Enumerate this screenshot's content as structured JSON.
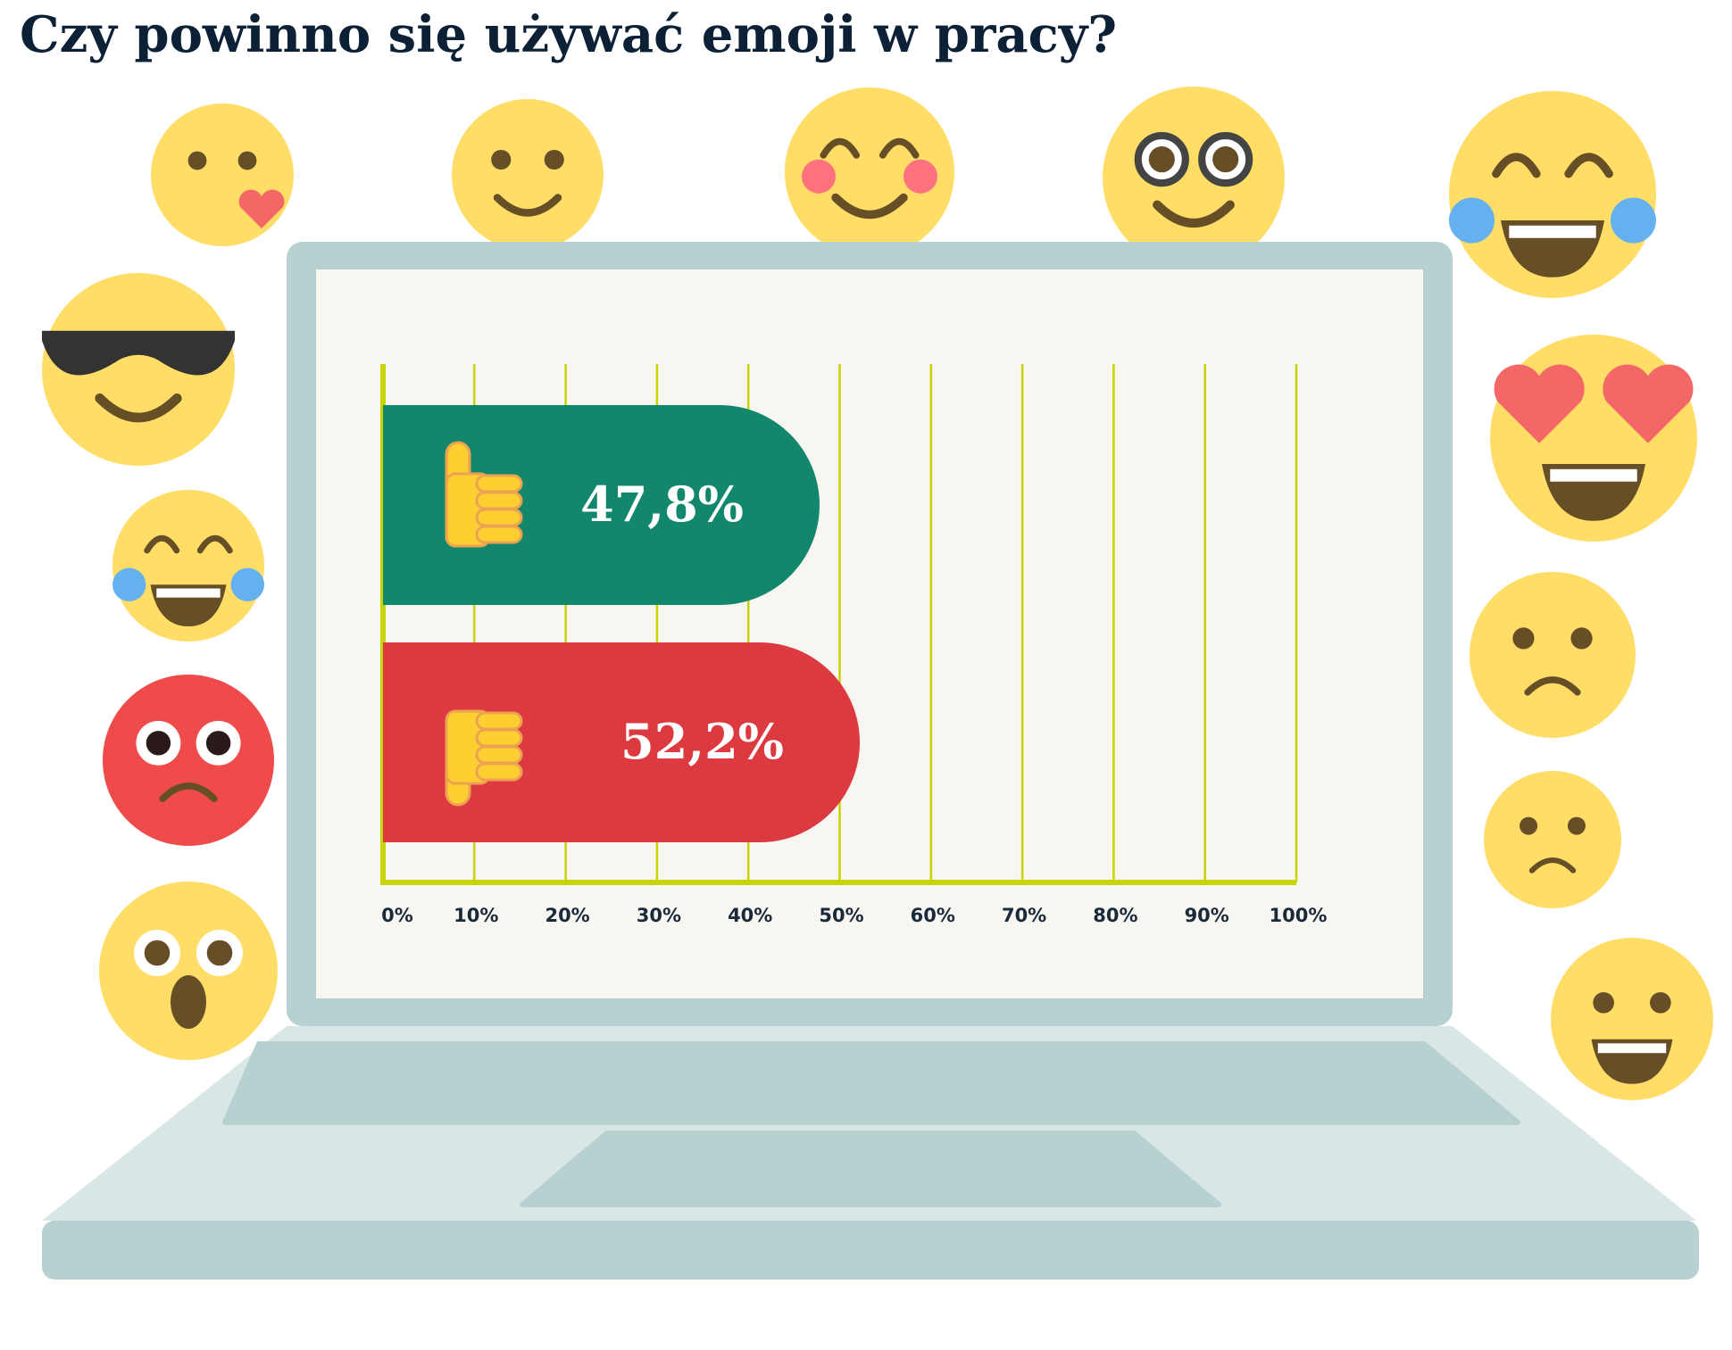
{
  "chart_data": {
    "type": "bar",
    "title": "Czy powinno się używać emoji w pracy?",
    "orientation": "horizontal",
    "series": [
      {
        "name": null,
        "color": "#12876b",
        "values": [
          47.8
        ],
        "value_labels": [
          "47,8%"
        ]
      },
      {
        "name": null,
        "color": "#dc3a40",
        "values": [
          52.2
        ],
        "value_labels": [
          "52,2%"
        ]
      }
    ],
    "xlim": [
      0,
      100
    ],
    "xticks": [
      {
        "value": 0,
        "label": "0%"
      },
      {
        "value": 10,
        "label": "10%"
      },
      {
        "value": 20,
        "label": "20%"
      },
      {
        "value": 30,
        "label": "30%"
      },
      {
        "value": 40,
        "label": "40%"
      },
      {
        "value": 50,
        "label": "50%"
      },
      {
        "value": 60,
        "label": "60%"
      },
      {
        "value": 70,
        "label": "70%"
      },
      {
        "value": 80,
        "label": "80%"
      },
      {
        "value": 90,
        "label": "90%"
      },
      {
        "value": 100,
        "label": "100%"
      }
    ],
    "grid": true,
    "grid_color": "#c8d400"
  }
}
